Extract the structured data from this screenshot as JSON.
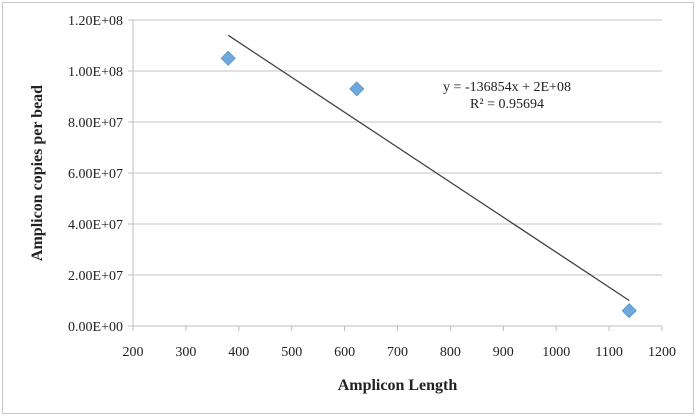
{
  "chart_data": {
    "type": "scatter",
    "title": "",
    "xlabel": "Amplicon Length",
    "ylabel": "Amplicon copies per bead",
    "xlim": [
      200,
      1200
    ],
    "ylim": [
      0,
      120000000
    ],
    "x_ticks": [
      "200",
      "300",
      "400",
      "500",
      "600",
      "700",
      "800",
      "900",
      "1000",
      "1100",
      "1200"
    ],
    "y_ticks": [
      "0.00E+00",
      "2.00E+07",
      "4.00E+07",
      "6.00E+07",
      "8.00E+07",
      "1.00E+08",
      "1.20E+08"
    ],
    "grid": "horizontal",
    "legend": "none",
    "series": [
      {
        "name": "Amplicon copies per bead",
        "marker": "diamond",
        "color": "#6fa8dc",
        "points": [
          {
            "x": 380,
            "y": 105000000
          },
          {
            "x": 623,
            "y": 93000000
          },
          {
            "x": 1138,
            "y": 6000000
          }
        ]
      }
    ],
    "trendline": {
      "type": "linear",
      "equation": "y = -136854x + 2E+08",
      "r_squared": "R² = 0.95694",
      "drawn_from": {
        "x": 380,
        "y": 114000000
      },
      "drawn_to": {
        "x": 1138,
        "y": 10000000
      },
      "color": "#404040"
    }
  }
}
